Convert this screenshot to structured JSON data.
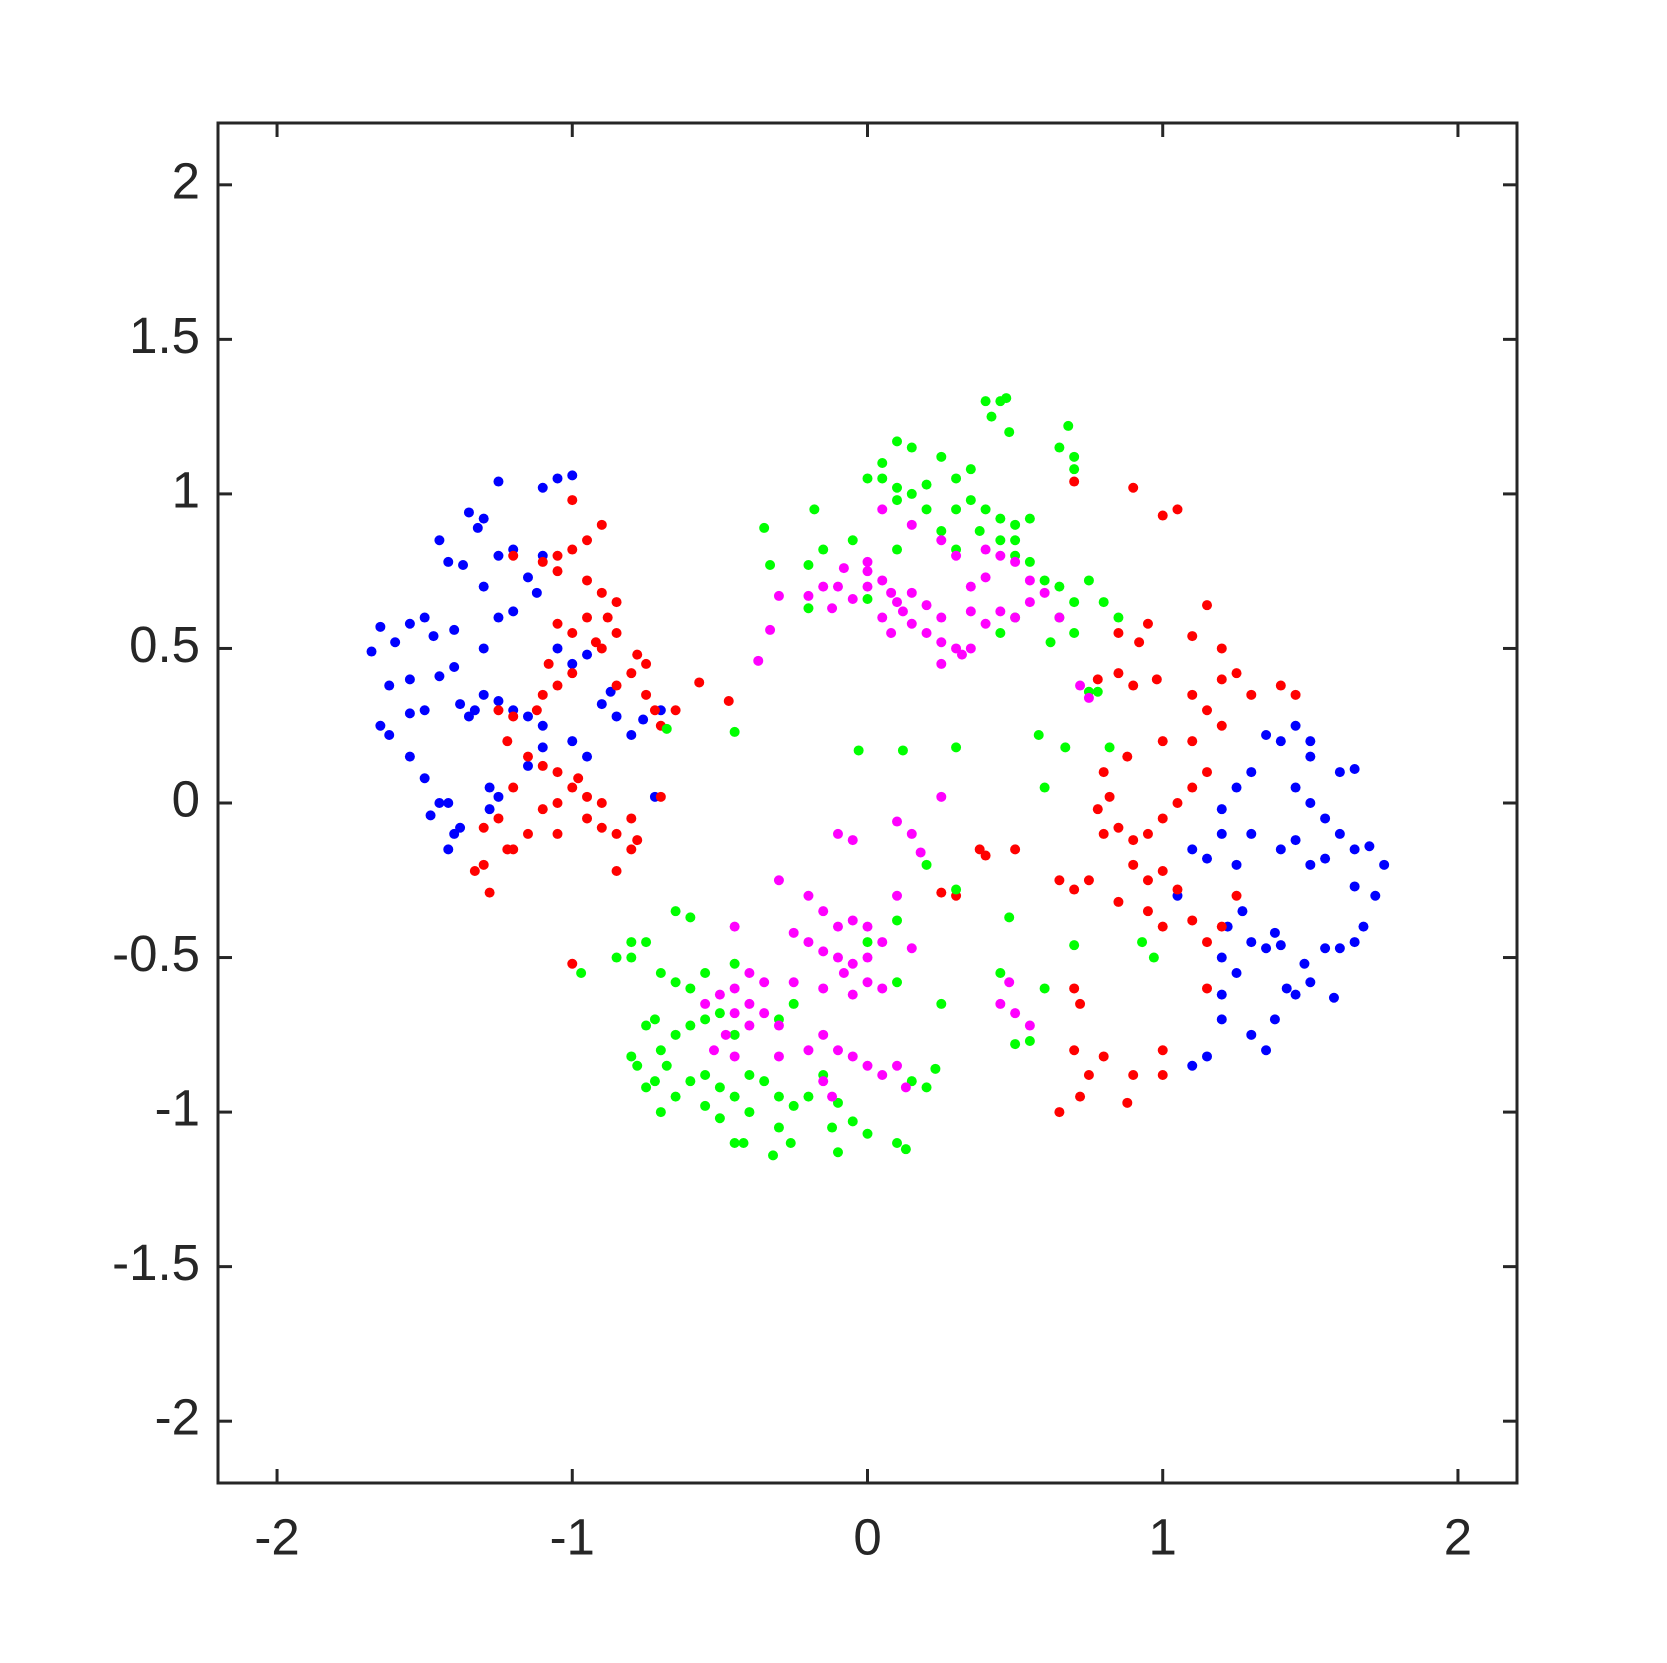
{
  "chart_data": {
    "type": "scatter",
    "xlim": [
      -2.2,
      2.2
    ],
    "ylim": [
      -2.2,
      2.2
    ],
    "xticks": [
      -2,
      -1,
      0,
      1,
      2
    ],
    "yticks": [
      -2,
      -1.5,
      -1,
      -0.5,
      0,
      0.5,
      1,
      1.5,
      2
    ],
    "grid": false,
    "series": [
      {
        "color": "#0000ff",
        "x": [
          -1.25,
          -1.05,
          -1.0,
          -1.1,
          -1.35,
          -1.3,
          -1.32,
          -1.45,
          -1.68,
          -1.65,
          -1.6,
          -1.55,
          -1.5,
          -1.47,
          -1.4,
          -1.42,
          -1.37,
          -1.3,
          -1.25,
          -1.2,
          -1.15,
          -1.1,
          -1.12,
          -1.2,
          -1.25,
          -1.3,
          -1.4,
          -1.45,
          -1.55,
          -1.62,
          -1.5,
          -1.55,
          -1.38,
          -1.35,
          -1.33,
          -1.3,
          -1.25,
          -1.2,
          -1.15,
          -1.1,
          -1.05,
          -1.0,
          -0.95,
          -0.9,
          -0.85,
          -0.8,
          -0.7,
          -1.65,
          -1.62,
          -1.55,
          -1.5,
          -1.45,
          -1.42,
          -1.4,
          -1.42,
          -1.38,
          -1.28,
          -1.25,
          -1.28,
          -1.15,
          -1.1,
          -1.0,
          -0.95,
          -0.87,
          -0.76,
          -0.72,
          -1.48,
          1.05,
          1.1,
          1.15,
          1.2,
          1.25,
          1.3,
          1.27,
          1.22,
          1.2,
          1.25,
          1.3,
          1.35,
          1.38,
          1.4,
          1.42,
          1.45,
          1.48,
          1.5,
          1.38,
          1.35,
          1.3,
          1.2,
          1.15,
          1.1,
          1.2,
          1.35,
          1.4,
          1.45,
          1.5,
          1.5,
          1.45,
          1.5,
          1.55,
          1.6,
          1.65,
          1.6,
          1.65,
          1.7,
          1.75,
          1.72,
          1.65,
          1.68,
          1.65,
          1.6,
          1.55,
          1.58,
          1.3,
          1.25,
          1.2,
          1.4,
          1.45,
          1.5,
          1.55
        ],
        "values": [
          1.04,
          1.05,
          1.06,
          1.02,
          0.94,
          0.92,
          0.89,
          0.85,
          0.49,
          0.57,
          0.52,
          0.58,
          0.6,
          0.54,
          0.56,
          0.78,
          0.77,
          0.7,
          0.8,
          0.82,
          0.73,
          0.8,
          0.68,
          0.62,
          0.6,
          0.5,
          0.44,
          0.41,
          0.4,
          0.38,
          0.3,
          0.29,
          0.32,
          0.28,
          0.3,
          0.35,
          0.33,
          0.3,
          0.28,
          0.25,
          0.5,
          0.45,
          0.48,
          0.32,
          0.28,
          0.22,
          0.3,
          0.25,
          0.22,
          0.15,
          0.08,
          0.0,
          0.0,
          -0.1,
          -0.15,
          -0.08,
          0.05,
          0.02,
          -0.02,
          0.12,
          0.18,
          0.2,
          0.15,
          0.36,
          0.27,
          0.02,
          -0.04,
          -0.3,
          -0.15,
          -0.18,
          -0.1,
          -0.2,
          -0.1,
          -0.35,
          -0.4,
          -0.5,
          -0.55,
          -0.45,
          -0.47,
          -0.42,
          -0.46,
          -0.6,
          -0.62,
          -0.52,
          -0.58,
          -0.7,
          -0.8,
          -0.75,
          -0.7,
          -0.82,
          -0.85,
          -0.62,
          0.22,
          0.2,
          0.25,
          0.2,
          0.15,
          0.05,
          0.0,
          -0.05,
          0.1,
          0.11,
          -0.1,
          -0.15,
          -0.14,
          -0.2,
          -0.3,
          -0.27,
          -0.4,
          -0.45,
          -0.47,
          -0.47,
          -0.63,
          0.1,
          0.05,
          -0.02,
          -0.15,
          -0.12,
          -0.2,
          -0.18
        ]
      },
      {
        "color": "#ff0000",
        "x": [
          -1.0,
          -0.9,
          -0.95,
          -1.0,
          -1.05,
          -1.1,
          -1.2,
          -1.05,
          -0.95,
          -0.9,
          -0.85,
          -0.88,
          -0.95,
          -1.0,
          -1.05,
          -0.92,
          -0.9,
          -0.85,
          -0.78,
          -0.75,
          -0.8,
          -0.85,
          -0.75,
          -0.72,
          -0.7,
          -0.65,
          -0.57,
          -0.47,
          -1.0,
          -1.05,
          -1.1,
          -1.08,
          -1.12,
          -1.2,
          -1.25,
          -1.22,
          -1.15,
          -1.1,
          -1.05,
          -1.0,
          -0.98,
          -0.95,
          -1.05,
          -1.1,
          -1.2,
          -1.25,
          -1.3,
          -1.22,
          -1.2,
          -1.3,
          -1.33,
          -1.28,
          -1.15,
          -1.05,
          -0.95,
          -0.9,
          -0.85,
          -0.8,
          -0.78,
          -0.8,
          -0.85,
          -0.9,
          -0.7,
          -1.0,
          0.7,
          0.9,
          1.0,
          1.05,
          1.15,
          1.1,
          1.2,
          0.85,
          0.95,
          0.92,
          0.78,
          0.85,
          0.9,
          0.98,
          1.1,
          1.2,
          1.25,
          1.3,
          1.4,
          1.45,
          1.15,
          1.2,
          1.1,
          1.0,
          0.88,
          0.8,
          1.15,
          1.1,
          1.05,
          1.0,
          0.95,
          0.9,
          0.85,
          0.8,
          0.78,
          0.82,
          0.9,
          0.95,
          1.0,
          1.05,
          0.75,
          0.7,
          0.65,
          0.85,
          0.95,
          1.0,
          1.1,
          1.15,
          1.2,
          1.25,
          1.15,
          0.7,
          0.72,
          0.7,
          0.75,
          0.72,
          0.65,
          0.8,
          0.9,
          0.88,
          1.0,
          1.0,
          0.5,
          0.4,
          0.3,
          0.25,
          0.38
        ],
        "values": [
          0.98,
          0.9,
          0.85,
          0.82,
          0.8,
          0.78,
          0.8,
          0.75,
          0.72,
          0.68,
          0.65,
          0.6,
          0.6,
          0.55,
          0.58,
          0.52,
          0.5,
          0.55,
          0.48,
          0.45,
          0.42,
          0.38,
          0.35,
          0.3,
          0.25,
          0.3,
          0.39,
          0.33,
          0.42,
          0.38,
          0.35,
          0.45,
          0.3,
          0.28,
          0.3,
          0.2,
          0.15,
          0.12,
          0.1,
          0.05,
          0.08,
          0.02,
          0.0,
          -0.02,
          0.05,
          -0.05,
          -0.08,
          -0.15,
          -0.15,
          -0.2,
          -0.22,
          -0.29,
          -0.1,
          -0.1,
          -0.05,
          -0.08,
          -0.1,
          -0.05,
          -0.12,
          -0.15,
          -0.22,
          0.0,
          0.02,
          -0.52,
          1.04,
          1.02,
          0.93,
          0.95,
          0.64,
          0.54,
          0.5,
          0.55,
          0.58,
          0.52,
          0.4,
          0.42,
          0.38,
          0.4,
          0.35,
          0.4,
          0.42,
          0.35,
          0.38,
          0.35,
          0.3,
          0.25,
          0.2,
          0.2,
          0.15,
          0.1,
          0.1,
          0.05,
          0.0,
          -0.05,
          -0.1,
          -0.12,
          -0.08,
          -0.1,
          -0.02,
          0.02,
          -0.2,
          -0.25,
          -0.22,
          -0.28,
          -0.25,
          -0.28,
          -0.25,
          -0.32,
          -0.35,
          -0.4,
          -0.38,
          -0.45,
          -0.4,
          -0.3,
          -0.6,
          -0.6,
          -0.65,
          -0.8,
          -0.88,
          -0.95,
          -1.0,
          -0.82,
          -0.88,
          -0.97,
          -0.8,
          -0.88,
          -0.15,
          -0.17,
          -0.3,
          -0.29,
          -0.15
        ]
      },
      {
        "color": "#00ff00",
        "x": [
          0.45,
          0.4,
          0.47,
          0.42,
          0.48,
          0.68,
          0.65,
          0.7,
          0.7,
          0.1,
          0.15,
          0.25,
          0.05,
          0.0,
          0.05,
          0.1,
          0.15,
          0.2,
          0.3,
          0.35,
          0.1,
          0.2,
          0.3,
          0.35,
          0.4,
          0.45,
          0.5,
          0.55,
          0.5,
          0.45,
          0.38,
          0.25,
          0.3,
          0.5,
          0.55,
          0.6,
          0.65,
          0.75,
          0.7,
          0.65,
          0.8,
          0.85,
          0.7,
          0.62,
          0.5,
          0.45,
          -0.35,
          -0.33,
          -0.2,
          -0.15,
          -0.18,
          -0.05,
          0.1,
          0.0,
          -0.2,
          0.78,
          0.75,
          -0.68,
          -0.45,
          -0.03,
          0.12,
          0.3,
          0.58,
          0.67,
          0.82,
          0.6,
          0.2,
          0.3,
          0.48,
          0.7,
          0.93,
          0.97,
          -0.97,
          -0.8,
          0.25,
          0.45,
          -0.65,
          -0.6,
          -0.75,
          -0.7,
          -0.65,
          -0.6,
          -0.55,
          -0.45,
          -0.72,
          -0.75,
          -0.8,
          -0.78,
          -0.7,
          -0.68,
          -0.65,
          -0.6,
          -0.55,
          -0.5,
          -0.45,
          -0.72,
          -0.75,
          -0.7,
          -0.65,
          -0.6,
          -0.55,
          -0.5,
          -0.45,
          -0.4,
          -0.35,
          -0.3,
          -0.25,
          -0.4,
          -0.5,
          -0.55,
          -0.3,
          -0.45,
          -0.42,
          -0.32,
          -0.26,
          -0.1,
          -0.12,
          -0.1,
          -0.05,
          0.0,
          0.1,
          0.13,
          -0.15,
          -0.2,
          0.15,
          0.23,
          0.2,
          0.1,
          0.0,
          0.1,
          -0.25,
          -0.3,
          -0.85,
          -0.8,
          0.6,
          0.55,
          0.5
        ],
        "values": [
          1.3,
          1.3,
          1.31,
          1.25,
          1.2,
          1.22,
          1.15,
          1.12,
          1.08,
          1.17,
          1.15,
          1.12,
          1.1,
          1.05,
          1.05,
          1.02,
          1.0,
          1.03,
          1.05,
          1.08,
          0.98,
          0.95,
          0.95,
          0.98,
          0.95,
          0.92,
          0.9,
          0.92,
          0.85,
          0.85,
          0.88,
          0.88,
          0.82,
          0.8,
          0.78,
          0.72,
          0.7,
          0.72,
          0.65,
          0.6,
          0.65,
          0.6,
          0.55,
          0.52,
          0.6,
          0.55,
          0.89,
          0.77,
          0.77,
          0.82,
          0.95,
          0.85,
          0.82,
          0.66,
          0.63,
          0.36,
          0.36,
          0.24,
          0.23,
          0.17,
          0.17,
          0.18,
          0.22,
          0.18,
          0.18,
          0.05,
          -0.2,
          -0.28,
          -0.37,
          -0.46,
          -0.45,
          -0.5,
          -0.55,
          -0.5,
          -0.65,
          -0.55,
          -0.35,
          -0.37,
          -0.45,
          -0.55,
          -0.58,
          -0.6,
          -0.55,
          -0.52,
          -0.7,
          -0.72,
          -0.82,
          -0.85,
          -0.8,
          -0.85,
          -0.75,
          -0.72,
          -0.7,
          -0.68,
          -0.75,
          -0.9,
          -0.92,
          -1.0,
          -0.95,
          -0.9,
          -0.88,
          -0.92,
          -0.95,
          -0.88,
          -0.9,
          -0.95,
          -0.98,
          -1.0,
          -1.02,
          -0.98,
          -1.05,
          -1.1,
          -1.1,
          -1.14,
          -1.1,
          -1.13,
          -1.05,
          -0.97,
          -1.03,
          -1.07,
          -1.1,
          -1.12,
          -0.88,
          -0.95,
          -0.9,
          -0.86,
          -0.92,
          -0.58,
          -0.45,
          -0.38,
          -0.65,
          -0.7,
          -0.5,
          -0.45,
          -0.6,
          -0.77,
          -0.78
        ]
      },
      {
        "color": "#ff00ff",
        "x": [
          0.05,
          0.15,
          0.25,
          0.3,
          0.4,
          0.45,
          0.5,
          0.55,
          0.4,
          0.35,
          0.35,
          0.45,
          0.4,
          0.5,
          0.55,
          0.6,
          0.65,
          -0.2,
          -0.15,
          -0.1,
          -0.12,
          -0.05,
          0.0,
          0.0,
          0.05,
          0.08,
          0.1,
          0.12,
          0.15,
          0.2,
          0.25,
          0.2,
          0.25,
          0.3,
          0.32,
          0.35,
          0.25,
          0.05,
          0.08,
          0.15,
          0.0,
          -0.08,
          -0.3,
          -0.33,
          -0.37,
          0.75,
          0.72,
          0.25,
          -0.1,
          -0.05,
          0.1,
          0.15,
          0.18,
          -0.3,
          -0.2,
          -0.15,
          -0.1,
          -0.05,
          0.0,
          0.05,
          -0.25,
          -0.2,
          -0.15,
          -0.1,
          -0.05,
          0.0,
          -0.08,
          0.0,
          0.05,
          -0.05,
          -0.15,
          -0.25,
          -0.35,
          -0.4,
          -0.45,
          -0.5,
          -0.55,
          -0.45,
          -0.4,
          -0.35,
          -0.3,
          -0.4,
          -0.48,
          -0.52,
          -0.45,
          -0.3,
          -0.2,
          -0.15,
          -0.1,
          -0.05,
          0.0,
          0.05,
          -0.15,
          -0.12,
          -0.45,
          0.1,
          0.15,
          0.1,
          0.13,
          0.45,
          0.5,
          0.55,
          0.48
        ],
        "values": [
          0.95,
          0.9,
          0.85,
          0.8,
          0.82,
          0.8,
          0.78,
          0.72,
          0.73,
          0.7,
          0.62,
          0.62,
          0.58,
          0.6,
          0.65,
          0.68,
          0.6,
          0.67,
          0.7,
          0.7,
          0.63,
          0.66,
          0.7,
          0.75,
          0.72,
          0.68,
          0.65,
          0.62,
          0.68,
          0.64,
          0.6,
          0.55,
          0.52,
          0.5,
          0.48,
          0.5,
          0.45,
          0.6,
          0.55,
          0.58,
          0.78,
          0.76,
          0.67,
          0.56,
          0.46,
          0.34,
          0.38,
          0.02,
          -0.1,
          -0.12,
          -0.06,
          -0.1,
          -0.16,
          -0.25,
          -0.3,
          -0.35,
          -0.4,
          -0.38,
          -0.4,
          -0.45,
          -0.42,
          -0.45,
          -0.48,
          -0.5,
          -0.52,
          -0.5,
          -0.55,
          -0.58,
          -0.6,
          -0.62,
          -0.6,
          -0.58,
          -0.58,
          -0.55,
          -0.6,
          -0.62,
          -0.65,
          -0.68,
          -0.65,
          -0.68,
          -0.72,
          -0.72,
          -0.75,
          -0.8,
          -0.82,
          -0.82,
          -0.8,
          -0.75,
          -0.8,
          -0.82,
          -0.85,
          -0.88,
          -0.9,
          -0.95,
          -0.4,
          -0.3,
          -0.47,
          -0.85,
          -0.92,
          -0.65,
          -0.68,
          -0.72,
          -0.58
        ]
      }
    ]
  }
}
